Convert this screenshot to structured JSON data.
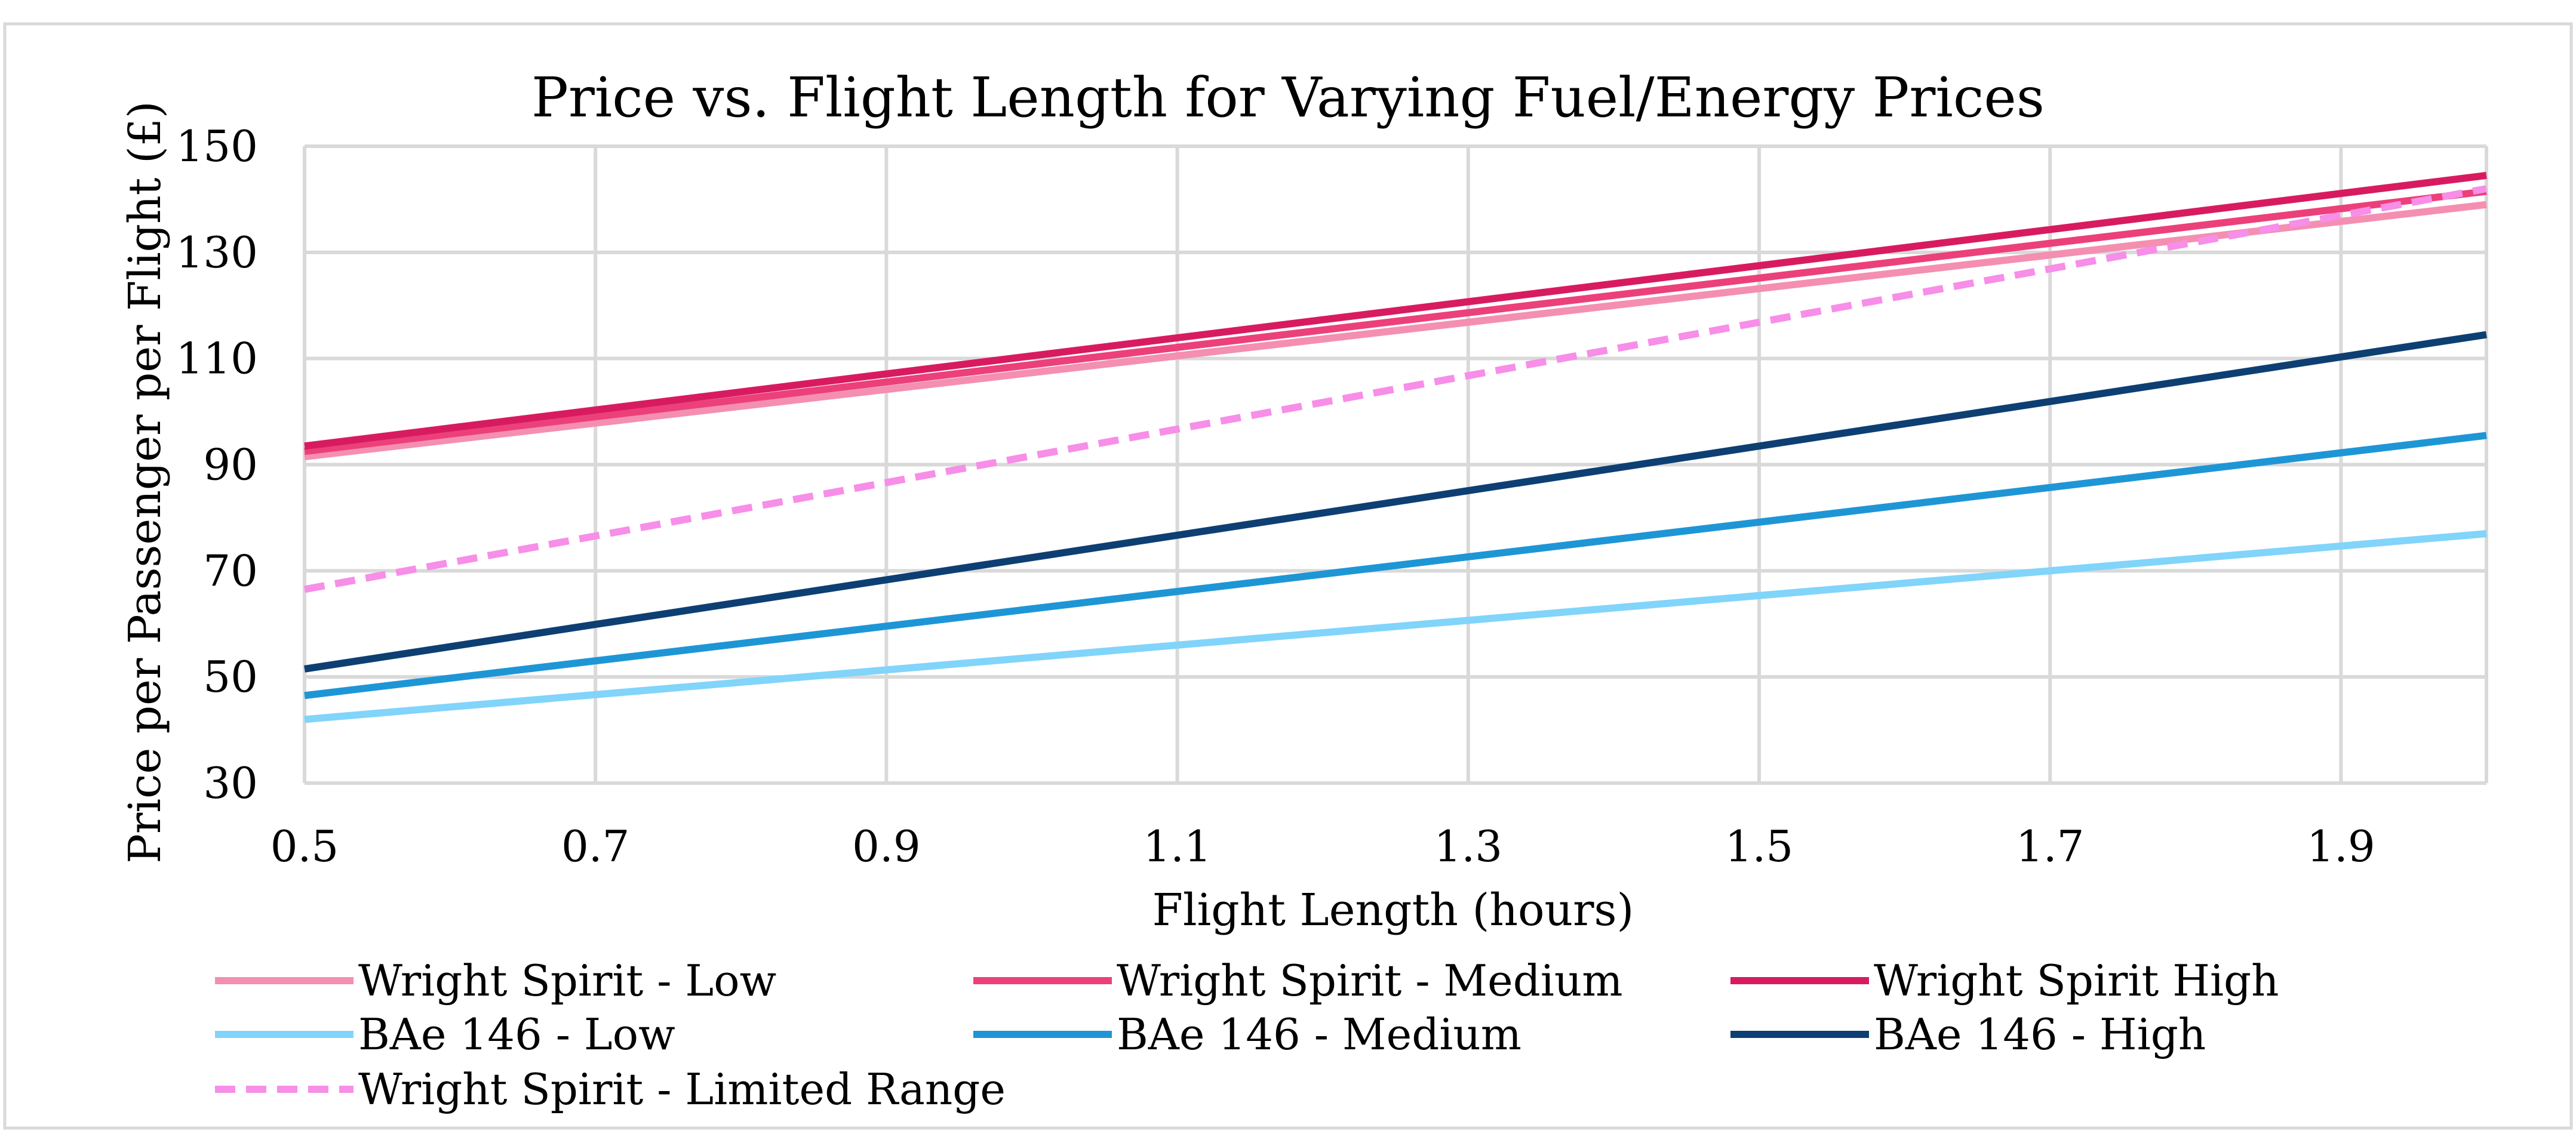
{
  "chart_data": {
    "type": "line",
    "title": "Price vs. Flight Length for Varying Fuel/Energy Prices",
    "xlabel": "Flight Length (hours)",
    "ylabel": "Price per Passenger per Flight (£)",
    "xlim": [
      0.5,
      2.0
    ],
    "ylim": [
      30,
      150
    ],
    "xticks": [
      0.5,
      0.7,
      0.9,
      1.1,
      1.3,
      1.5,
      1.7,
      1.9
    ],
    "xtick_labels": [
      "0.5",
      "0.7",
      "0.9",
      "1.1",
      "1.3",
      "1.5",
      "1.7",
      "1.9"
    ],
    "yticks": [
      30,
      50,
      70,
      90,
      110,
      130,
      150
    ],
    "ytick_labels": [
      "30",
      "50",
      "70",
      "90",
      "110",
      "130",
      "150"
    ],
    "grid": true,
    "legend_position": "bottom",
    "series": [
      {
        "name": "Wright Spirit - Low",
        "color": "#f48fb1",
        "dashed": false,
        "x": [
          0.5,
          2.0
        ],
        "y": [
          91.5,
          139
        ]
      },
      {
        "name": "Wright Spirit - Medium",
        "color": "#ec407a",
        "dashed": false,
        "x": [
          0.5,
          2.0
        ],
        "y": [
          92.5,
          141.5
        ]
      },
      {
        "name": "Wright Spirit High",
        "color": "#d81b60",
        "dashed": false,
        "x": [
          0.5,
          2.0
        ],
        "y": [
          93.5,
          144.5
        ]
      },
      {
        "name": "BAe 146 - Low",
        "color": "#81d4fa",
        "dashed": false,
        "x": [
          0.5,
          2.0
        ],
        "y": [
          42,
          77
        ]
      },
      {
        "name": "BAe 146 - Medium",
        "color": "#1e96d6",
        "dashed": false,
        "x": [
          0.5,
          2.0
        ],
        "y": [
          46.5,
          95.5
        ]
      },
      {
        "name": "BAe 146 - High",
        "color": "#0d3f73",
        "dashed": false,
        "x": [
          0.5,
          2.0
        ],
        "y": [
          51.5,
          114.5
        ]
      },
      {
        "name": "Wright Spirit - Limited Range",
        "color": "#f78ee8",
        "dashed": true,
        "x": [
          0.5,
          2.0
        ],
        "y": [
          66.5,
          142
        ]
      }
    ]
  }
}
